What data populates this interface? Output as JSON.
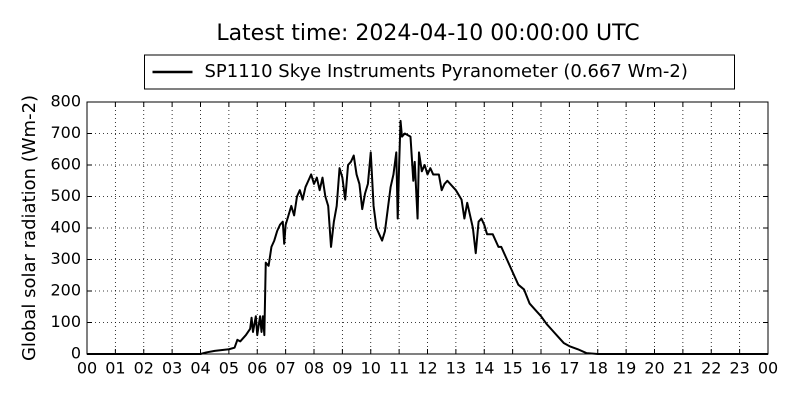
{
  "chart_data": {
    "type": "line",
    "title": "Latest time: 2024-04-10 00:00:00 UTC",
    "y_label": "Global solar radiation (Wm-2)",
    "legend": "upper center",
    "grid": true,
    "xlim": [
      0,
      24
    ],
    "xticks": [
      {
        "value": 0,
        "label": "00"
      },
      {
        "value": 1,
        "label": "01"
      },
      {
        "value": 2,
        "label": "02"
      },
      {
        "value": 3,
        "label": "03"
      },
      {
        "value": 4,
        "label": "04"
      },
      {
        "value": 5,
        "label": "05"
      },
      {
        "value": 6,
        "label": "06"
      },
      {
        "value": 7,
        "label": "07"
      },
      {
        "value": 8,
        "label": "08"
      },
      {
        "value": 9,
        "label": "09"
      },
      {
        "value": 10,
        "label": "10"
      },
      {
        "value": 11,
        "label": "11"
      },
      {
        "value": 12,
        "label": "12"
      },
      {
        "value": 13,
        "label": "13"
      },
      {
        "value": 14,
        "label": "14"
      },
      {
        "value": 15,
        "label": "15"
      },
      {
        "value": 16,
        "label": "16"
      },
      {
        "value": 17,
        "label": "17"
      },
      {
        "value": 18,
        "label": "18"
      },
      {
        "value": 19,
        "label": "19"
      },
      {
        "value": 20,
        "label": "20"
      },
      {
        "value": 21,
        "label": "21"
      },
      {
        "value": 22,
        "label": "22"
      },
      {
        "value": 23,
        "label": "23"
      },
      {
        "value": 24,
        "label": "00"
      }
    ],
    "ylim": [
      0,
      800
    ],
    "yticks": [
      0,
      100,
      200,
      300,
      400,
      500,
      600,
      700,
      800
    ],
    "x": [
      0,
      4.0,
      4.2,
      4.5,
      5.0,
      5.2,
      5.3,
      5.4,
      5.6,
      5.75,
      5.8,
      5.85,
      5.95,
      6.0,
      6.05,
      6.1,
      6.15,
      6.2,
      6.25,
      6.3,
      6.4,
      6.5,
      6.6,
      6.7,
      6.8,
      6.9,
      6.95,
      7.0,
      7.2,
      7.3,
      7.4,
      7.5,
      7.6,
      7.7,
      7.8,
      7.9,
      8.0,
      8.1,
      8.2,
      8.3,
      8.4,
      8.5,
      8.6,
      8.7,
      8.8,
      8.9,
      9.0,
      9.1,
      9.2,
      9.3,
      9.4,
      9.5,
      9.6,
      9.7,
      9.8,
      9.9,
      10.0,
      10.1,
      10.2,
      10.3,
      10.4,
      10.5,
      10.6,
      10.7,
      10.8,
      10.9,
      10.95,
      11.0,
      11.05,
      11.1,
      11.2,
      11.4,
      11.5,
      11.55,
      11.65,
      11.7,
      11.8,
      11.9,
      12.0,
      12.1,
      12.2,
      12.4,
      12.5,
      12.6,
      12.7,
      12.9,
      13.0,
      13.2,
      13.3,
      13.4,
      13.5,
      13.6,
      13.7,
      13.8,
      13.9,
      14.0,
      14.1,
      14.3,
      14.5,
      14.6,
      14.8,
      15.0,
      15.2,
      15.4,
      15.6,
      15.8,
      16.0,
      16.2,
      16.4,
      16.6,
      16.8,
      17.0,
      17.3,
      17.6,
      18.0,
      24
    ],
    "series": [
      {
        "name": "SP1110 Skye Instruments Pyranometer (0.667 Wm-2)",
        "color": "#000000",
        "values": [
          0,
          0,
          5,
          10,
          15,
          20,
          45,
          40,
          60,
          80,
          115,
          70,
          120,
          60,
          90,
          120,
          70,
          120,
          60,
          290,
          280,
          340,
          360,
          390,
          410,
          420,
          350,
          410,
          470,
          440,
          500,
          520,
          490,
          530,
          550,
          570,
          540,
          560,
          520,
          560,
          500,
          470,
          340,
          420,
          470,
          590,
          560,
          490,
          600,
          610,
          630,
          570,
          540,
          460,
          510,
          540,
          640,
          470,
          400,
          380,
          360,
          390,
          460,
          530,
          570,
          640,
          430,
          600,
          740,
          690,
          700,
          690,
          550,
          610,
          430,
          640,
          580,
          600,
          570,
          590,
          570,
          570,
          520,
          540,
          550,
          530,
          520,
          490,
          430,
          480,
          440,
          400,
          320,
          420,
          430,
          410,
          380,
          380,
          340,
          340,
          300,
          260,
          220,
          205,
          160,
          140,
          120,
          95,
          75,
          55,
          35,
          25,
          15,
          3,
          0,
          0
        ]
      }
    ]
  }
}
